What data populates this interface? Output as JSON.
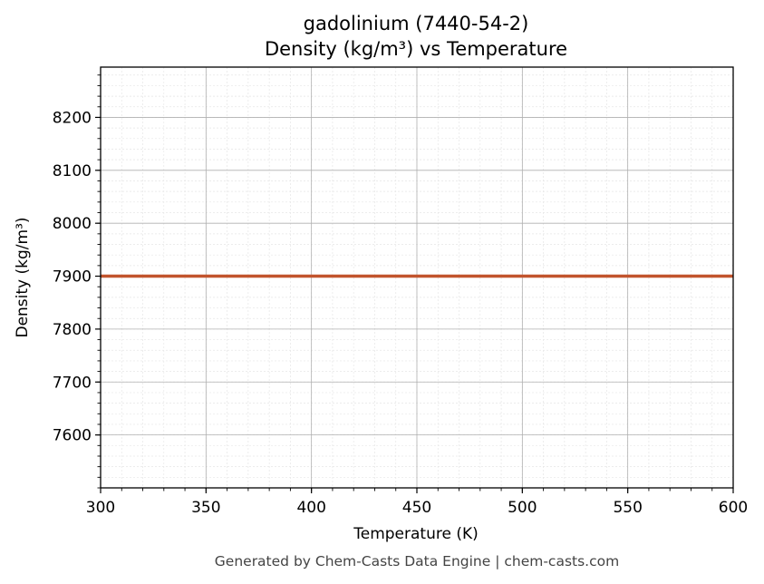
{
  "chart_data": {
    "type": "line",
    "title": "gadolinium (7440-54-2)",
    "subtitle": "Density (kg/m³) vs Temperature",
    "xlabel": "Temperature (K)",
    "ylabel": "Density (kg/m³)",
    "xlim": [
      300,
      600
    ],
    "ylim": [
      7500,
      8295
    ],
    "x_ticks": [
      300,
      350,
      400,
      450,
      500,
      550,
      600
    ],
    "y_ticks": [
      7600,
      7700,
      7800,
      7900,
      8000,
      8100,
      8200
    ],
    "x_tick_labels": [
      "300",
      "350",
      "400",
      "450",
      "500",
      "550",
      "600"
    ],
    "y_tick_labels": [
      "7600",
      "7700",
      "7800",
      "7900",
      "8000",
      "8100",
      "8200"
    ],
    "grid": true,
    "minor_grid": true,
    "series": [
      {
        "color": "#c2542d",
        "x": [
          300,
          600
        ],
        "y": [
          7900,
          7900
        ]
      }
    ]
  },
  "footer": "Generated by Chem-Casts Data Engine | chem-casts.com"
}
